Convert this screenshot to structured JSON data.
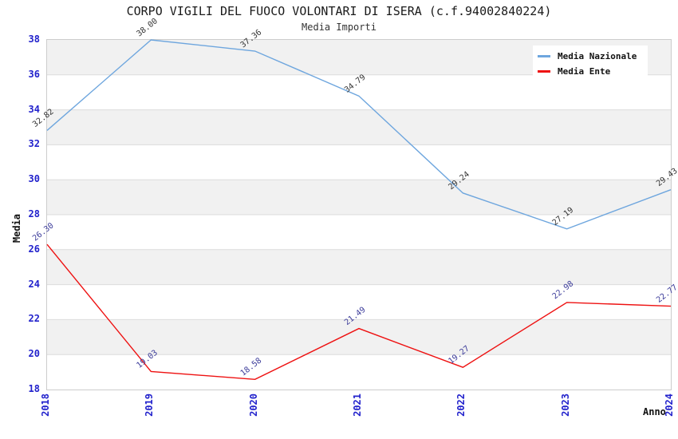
{
  "chart_data": {
    "type": "line",
    "title": "CORPO VIGILI DEL FUOCO VOLONTARI DI ISERA (c.f.94002840224)",
    "subtitle": "Media Importi",
    "xlabel": "Anno",
    "ylabel": "Media",
    "categories": [
      "2018",
      "2019",
      "2020",
      "2021",
      "2022",
      "2023",
      "2024"
    ],
    "series": [
      {
        "name": "Media Nazionale",
        "color": "#6ea6de",
        "label_color": "#333333",
        "values": [
          32.82,
          38.0,
          37.36,
          34.79,
          29.24,
          27.19,
          29.43
        ]
      },
      {
        "name": "Media Ente",
        "color": "#ee1111",
        "label_color": "#3a3a99",
        "values": [
          26.3,
          19.03,
          18.58,
          21.49,
          19.27,
          22.98,
          22.77
        ]
      }
    ],
    "ylim": [
      18,
      38
    ],
    "ytick_step": 2,
    "yticks": [
      18,
      20,
      22,
      24,
      26,
      28,
      30,
      32,
      34,
      36,
      38
    ],
    "grid": "horizontal-bands",
    "legend_position": "top-right",
    "band_color": "#f1f1f1",
    "gridline_color": "#dcdcdc",
    "axis_tick_color": "#2222cc"
  }
}
